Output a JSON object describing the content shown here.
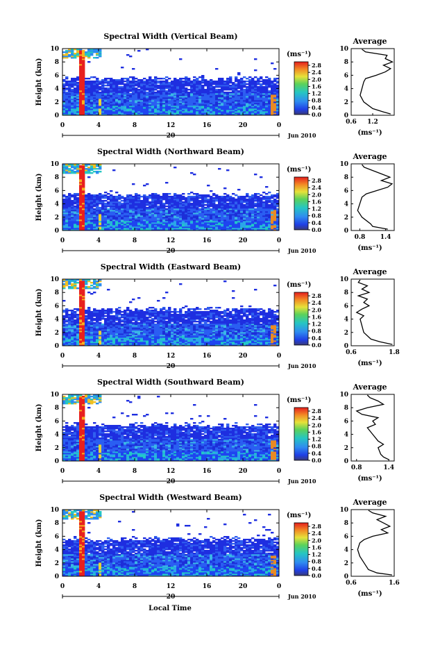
{
  "figure": {
    "xlabel": "Local Time",
    "date_label": "20",
    "month_label": "Jun 2010",
    "unit_label": "(ms⁻¹)",
    "colorbar_ticks": [
      "0.0",
      "0.4",
      "0.8",
      "1.2",
      "1.6",
      "2.0",
      "2.4",
      "2.8"
    ],
    "avg_title": "Average",
    "avg_xlabel": "(ms⁻¹)",
    "colors": {
      "text": "#000000",
      "heat_low": "#1e1ef0",
      "heat_mid": "#22c8c8",
      "heat_high": "#e8201e"
    }
  },
  "chart_data": [
    {
      "type": "heatmap",
      "title": "Spectral Width (Vertical Beam)",
      "ylabel": "Height (km)",
      "xlim": [
        0,
        24
      ],
      "ylim": [
        0,
        10
      ],
      "x_ticks": [
        "0",
        "4",
        "8",
        "12",
        "16",
        "20",
        "0"
      ],
      "y_ticks": [
        "0",
        "2",
        "4",
        "6",
        "8",
        "10"
      ],
      "colorbar": {
        "min": 0.0,
        "max": 3.0,
        "ticks": [
          0.0,
          0.4,
          0.8,
          1.2,
          1.6,
          2.0,
          2.4,
          2.8
        ]
      },
      "features": {
        "cloud_top_km": 5.4,
        "rain_band_hours": [
          1.6,
          2.3
        ],
        "upper_cloud_km": [
          8.4,
          10
        ]
      },
      "average_profile": {
        "xlim": [
          0.6,
          1.8
        ],
        "x_ticks": [
          "0.6",
          "1.2"
        ],
        "y_ticks": [
          "0",
          "2",
          "4",
          "6",
          "8",
          "10"
        ],
        "heights": [
          0.2,
          0.5,
          1.0,
          2.0,
          3.0,
          4.0,
          5.0,
          5.5,
          6.0,
          6.5,
          7.0,
          7.5,
          8.0,
          8.5,
          9.0,
          9.5,
          9.9
        ],
        "values": [
          1.7,
          1.5,
          1.2,
          0.95,
          0.85,
          0.9,
          0.95,
          1.0,
          1.3,
          1.55,
          1.7,
          1.5,
          1.75,
          1.55,
          1.6,
          1.0,
          0.9
        ]
      }
    },
    {
      "type": "heatmap",
      "title": "Spectral Width (Northward Beam)",
      "ylabel": "Height (km)",
      "xlim": [
        0,
        24
      ],
      "ylim": [
        0,
        10
      ],
      "x_ticks": [
        "0",
        "4",
        "8",
        "12",
        "16",
        "20",
        "0"
      ],
      "y_ticks": [
        "0",
        "2",
        "4",
        "6",
        "8",
        "10"
      ],
      "colorbar": {
        "min": 0.0,
        "max": 3.0,
        "ticks": [
          0.0,
          0.4,
          0.8,
          1.2,
          1.6,
          2.0,
          2.4,
          2.8
        ]
      },
      "features": {
        "cloud_top_km": 5.3,
        "rain_band_hours": [
          1.6,
          2.3
        ],
        "upper_cloud_km": [
          8.4,
          10
        ]
      },
      "average_profile": {
        "xlim": [
          0.6,
          1.6
        ],
        "x_ticks": [
          "0.8",
          "1.4"
        ],
        "y_ticks": [
          "0",
          "2",
          "4",
          "6",
          "8",
          "10"
        ],
        "heights": [
          0.2,
          0.6,
          1.0,
          2.0,
          3.0,
          4.0,
          5.0,
          5.5,
          6.0,
          6.5,
          7.0,
          7.5,
          8.0,
          8.5,
          9.0,
          9.5,
          9.9
        ],
        "values": [
          1.45,
          1.1,
          1.05,
          0.85,
          0.75,
          0.8,
          0.85,
          0.95,
          1.2,
          1.45,
          1.55,
          1.3,
          1.5,
          1.3,
          1.1,
          0.9,
          0.85
        ]
      }
    },
    {
      "type": "heatmap",
      "title": "Spectral Width (Eastward Beam)",
      "ylabel": "Height (km)",
      "xlim": [
        0,
        24
      ],
      "ylim": [
        0,
        10
      ],
      "x_ticks": [
        "0",
        "4",
        "8",
        "12",
        "16",
        "20",
        "0"
      ],
      "y_ticks": [
        "0",
        "2",
        "4",
        "6",
        "8",
        "10"
      ],
      "colorbar": {
        "min": 0.0,
        "max": 3.0,
        "ticks": [
          0.0,
          0.4,
          0.8,
          1.2,
          1.6,
          2.0,
          2.4,
          2.8
        ]
      },
      "features": {
        "cloud_top_km": 5.4,
        "rain_band_hours": [
          1.6,
          2.3
        ],
        "upper_cloud_km": [
          8.4,
          10
        ]
      },
      "average_profile": {
        "xlim": [
          0.6,
          1.8
        ],
        "x_ticks": [
          "0.6",
          "1.8"
        ],
        "y_ticks": [
          "0",
          "2",
          "4",
          "6",
          "8",
          "10"
        ],
        "heights": [
          0.2,
          0.6,
          1.0,
          2.0,
          3.0,
          4.0,
          4.5,
          5.0,
          5.5,
          6.0,
          6.5,
          7.0,
          7.5,
          8.0,
          8.5,
          9.0,
          9.5,
          9.9
        ],
        "values": [
          1.75,
          1.4,
          1.15,
          0.95,
          0.9,
          0.85,
          0.95,
          0.75,
          0.9,
          1.1,
          0.95,
          1.05,
          0.8,
          1.1,
          0.9,
          1.05,
          0.8,
          0.85
        ]
      }
    },
    {
      "type": "heatmap",
      "title": "Spectral Width (Southward Beam)",
      "ylabel": "Height (km)",
      "xlim": [
        0,
        24
      ],
      "ylim": [
        0,
        10
      ],
      "x_ticks": [
        "0",
        "4",
        "8",
        "12",
        "16",
        "20",
        "0"
      ],
      "y_ticks": [
        "0",
        "2",
        "4",
        "6",
        "8",
        "10"
      ],
      "colorbar": {
        "min": 0.0,
        "max": 3.0,
        "ticks": [
          0.0,
          0.4,
          0.8,
          1.2,
          1.6,
          2.0,
          2.4,
          2.8
        ]
      },
      "features": {
        "cloud_top_km": 5.3,
        "rain_band_hours": [
          1.6,
          2.3
        ],
        "upper_cloud_km": [
          8.4,
          10
        ]
      },
      "average_profile": {
        "xlim": [
          0.7,
          1.5
        ],
        "x_ticks": [
          "0.8",
          "1.4"
        ],
        "y_ticks": [
          "0",
          "2",
          "4",
          "6",
          "8",
          "10"
        ],
        "heights": [
          0.2,
          0.6,
          1.0,
          2.0,
          2.5,
          3.0,
          4.0,
          5.0,
          5.5,
          6.0,
          6.5,
          7.0,
          7.5,
          8.0,
          8.5,
          9.0,
          9.5,
          9.9
        ],
        "values": [
          1.4,
          1.3,
          1.25,
          1.2,
          1.3,
          1.2,
          1.1,
          1.0,
          1.15,
          1.1,
          1.2,
          0.9,
          0.8,
          1.0,
          1.3,
          1.2,
          1.05,
          1.0
        ]
      }
    },
    {
      "type": "heatmap",
      "title": "Spectral Width (Westward Beam)",
      "ylabel": "Height (km)",
      "xlim": [
        0,
        24
      ],
      "ylim": [
        0,
        10
      ],
      "x_ticks": [
        "0",
        "4",
        "8",
        "12",
        "16",
        "20",
        "0"
      ],
      "y_ticks": [
        "0",
        "2",
        "4",
        "6",
        "8",
        "10"
      ],
      "colorbar": {
        "min": 0.0,
        "max": 3.0,
        "ticks": [
          0.0,
          0.4,
          0.8,
          1.2,
          1.6,
          2.0,
          2.4,
          2.8
        ]
      },
      "features": {
        "cloud_top_km": 5.5,
        "rain_band_hours": [
          1.6,
          2.3
        ],
        "upper_cloud_km": [
          8.4,
          10
        ]
      },
      "average_profile": {
        "xlim": [
          0.6,
          1.6
        ],
        "x_ticks": [
          "0.6",
          "1.6"
        ],
        "y_ticks": [
          "0",
          "2",
          "4",
          "6",
          "8",
          "10"
        ],
        "heights": [
          0.2,
          0.5,
          1.0,
          2.0,
          3.0,
          4.0,
          5.0,
          5.5,
          6.0,
          6.5,
          7.0,
          7.5,
          8.0,
          8.5,
          9.0,
          9.5,
          9.9
        ],
        "values": [
          1.55,
          1.2,
          1.0,
          0.9,
          0.8,
          0.75,
          0.8,
          0.9,
          1.1,
          1.45,
          1.3,
          1.5,
          1.35,
          1.2,
          1.4,
          1.1,
          1.0
        ]
      }
    }
  ]
}
